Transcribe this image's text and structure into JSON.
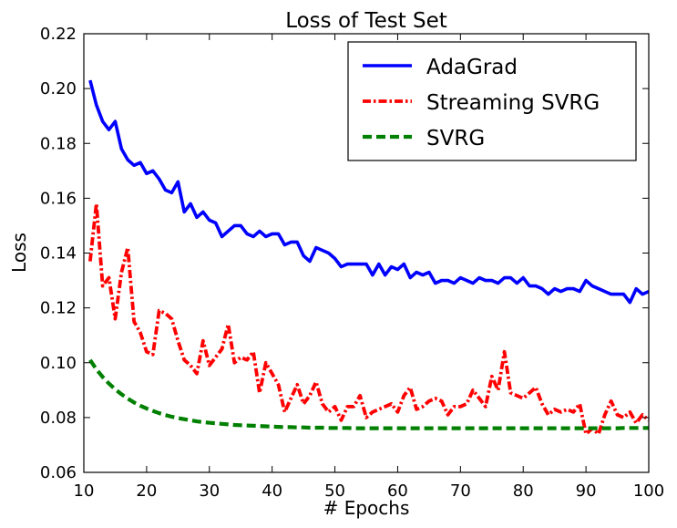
{
  "chart_data": {
    "type": "line",
    "title": "Loss of Test Set",
    "xlabel": "# Epochs",
    "ylabel": "Loss",
    "xlim": [
      10,
      100
    ],
    "ylim": [
      0.06,
      0.22
    ],
    "xticks": [
      10,
      20,
      30,
      40,
      50,
      60,
      70,
      80,
      90,
      100
    ],
    "yticks": [
      0.06,
      0.08,
      0.1,
      0.12,
      0.14,
      0.16,
      0.18,
      0.2,
      0.22
    ],
    "ytick_labels": [
      "0.06",
      "0.08",
      "0.10",
      "0.12",
      "0.14",
      "0.16",
      "0.18",
      "0.20",
      "0.22"
    ],
    "legend_position": "top-right",
    "grid": false,
    "x": [
      11,
      12,
      13,
      14,
      15,
      16,
      17,
      18,
      19,
      20,
      21,
      22,
      23,
      24,
      25,
      26,
      27,
      28,
      29,
      30,
      31,
      32,
      33,
      34,
      35,
      36,
      37,
      38,
      39,
      40,
      41,
      42,
      43,
      44,
      45,
      46,
      47,
      48,
      49,
      50,
      51,
      52,
      53,
      54,
      55,
      56,
      57,
      58,
      59,
      60,
      61,
      62,
      63,
      64,
      65,
      66,
      67,
      68,
      69,
      70,
      71,
      72,
      73,
      74,
      75,
      76,
      77,
      78,
      79,
      80,
      81,
      82,
      83,
      84,
      85,
      86,
      87,
      88,
      89,
      90,
      91,
      92,
      93,
      94,
      95,
      96,
      97,
      98,
      99,
      100
    ],
    "series": [
      {
        "name": "AdaGrad",
        "color": "#0000ff",
        "style": "solid",
        "values": [
          0.203,
          0.194,
          0.188,
          0.185,
          0.188,
          0.178,
          0.174,
          0.172,
          0.173,
          0.169,
          0.17,
          0.167,
          0.163,
          0.162,
          0.166,
          0.155,
          0.158,
          0.153,
          0.155,
          0.152,
          0.151,
          0.146,
          0.148,
          0.15,
          0.15,
          0.147,
          0.146,
          0.148,
          0.146,
          0.147,
          0.147,
          0.143,
          0.144,
          0.144,
          0.139,
          0.137,
          0.142,
          0.141,
          0.14,
          0.138,
          0.135,
          0.136,
          0.136,
          0.136,
          0.136,
          0.132,
          0.136,
          0.132,
          0.135,
          0.134,
          0.136,
          0.131,
          0.133,
          0.132,
          0.133,
          0.129,
          0.13,
          0.13,
          0.129,
          0.131,
          0.13,
          0.129,
          0.131,
          0.13,
          0.13,
          0.129,
          0.131,
          0.131,
          0.129,
          0.131,
          0.128,
          0.128,
          0.127,
          0.125,
          0.127,
          0.126,
          0.127,
          0.127,
          0.126,
          0.13,
          0.128,
          0.127,
          0.126,
          0.125,
          0.125,
          0.125,
          0.122,
          0.127,
          0.125,
          0.126
        ]
      },
      {
        "name": "Streaming SVRG",
        "color": "#ff0000",
        "style": "dashdot",
        "values": [
          0.137,
          0.158,
          0.128,
          0.131,
          0.116,
          0.133,
          0.142,
          0.115,
          0.111,
          0.104,
          0.103,
          0.119,
          0.118,
          0.116,
          0.108,
          0.101,
          0.099,
          0.096,
          0.108,
          0.099,
          0.102,
          0.105,
          0.114,
          0.1,
          0.102,
          0.101,
          0.104,
          0.089,
          0.1,
          0.096,
          0.092,
          0.082,
          0.087,
          0.092,
          0.085,
          0.088,
          0.093,
          0.085,
          0.082,
          0.084,
          0.079,
          0.084,
          0.084,
          0.088,
          0.08,
          0.082,
          0.083,
          0.084,
          0.085,
          0.082,
          0.088,
          0.091,
          0.083,
          0.084,
          0.086,
          0.087,
          0.086,
          0.081,
          0.084,
          0.084,
          0.085,
          0.09,
          0.087,
          0.084,
          0.095,
          0.09,
          0.104,
          0.089,
          0.088,
          0.087,
          0.089,
          0.091,
          0.085,
          0.081,
          0.083,
          0.082,
          0.083,
          0.082,
          0.085,
          0.074,
          0.076,
          0.074,
          0.081,
          0.086,
          0.081,
          0.08,
          0.082,
          0.078,
          0.081,
          0.079
        ]
      },
      {
        "name": "SVRG",
        "color": "#008000",
        "style": "dashed",
        "values": [
          0.101,
          0.0976,
          0.0948,
          0.0924,
          0.0903,
          0.0885,
          0.0869,
          0.0855,
          0.0843,
          0.0833,
          0.0824,
          0.0816,
          0.0809,
          0.0803,
          0.0798,
          0.0794,
          0.079,
          0.0786,
          0.0783,
          0.0781,
          0.0779,
          0.0777,
          0.0775,
          0.0773,
          0.0772,
          0.0771,
          0.077,
          0.0769,
          0.0768,
          0.0767,
          0.0766,
          0.0765,
          0.0765,
          0.0764,
          0.0764,
          0.0763,
          0.0763,
          0.0763,
          0.0762,
          0.0762,
          0.0762,
          0.0762,
          0.0761,
          0.0761,
          0.0761,
          0.0761,
          0.0761,
          0.0761,
          0.0761,
          0.0761,
          0.0761,
          0.0761,
          0.0761,
          0.0761,
          0.0761,
          0.0761,
          0.0761,
          0.0761,
          0.0761,
          0.0761,
          0.0761,
          0.0761,
          0.0761,
          0.0761,
          0.0761,
          0.0761,
          0.0761,
          0.0761,
          0.0761,
          0.0761,
          0.0761,
          0.0761,
          0.0761,
          0.0761,
          0.0761,
          0.0761,
          0.0761,
          0.0761,
          0.0761,
          0.0761,
          0.0761,
          0.0761,
          0.0761,
          0.0761,
          0.0761,
          0.0762,
          0.0762,
          0.0762,
          0.0762,
          0.0762
        ]
      }
    ]
  }
}
